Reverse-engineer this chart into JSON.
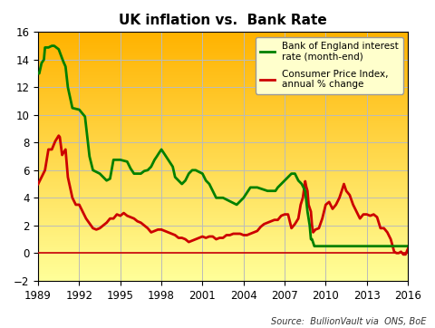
{
  "title": "UK inflation vs.  Bank Rate",
  "source_text": "Source:  BullionVault via  ONS, BoE",
  "ylim": [
    -2,
    16
  ],
  "xlim": [
    1989,
    2016
  ],
  "yticks": [
    -2,
    0,
    2,
    4,
    6,
    8,
    10,
    12,
    14,
    16
  ],
  "xticks": [
    1989,
    1992,
    1995,
    1998,
    2001,
    2004,
    2007,
    2010,
    2013,
    2016
  ],
  "bg_color_top": "#FFB300",
  "bg_color_bottom": "#FFFF99",
  "grid_color": "#BBBBBB",
  "bank_rate_color": "#008000",
  "cpi_color": "#CC0000",
  "zero_line_color": "#CC0000",
  "legend_label_bank": "Bank of England interest\nrate (month-end)",
  "legend_label_cpi": "Consumer Price Index,\nannual % change",
  "bank_rate": [
    [
      1989.0,
      13.0
    ],
    [
      1989.08,
      13.0
    ],
    [
      1989.25,
      13.75
    ],
    [
      1989.42,
      14.0
    ],
    [
      1989.5,
      14.88
    ],
    [
      1989.75,
      14.88
    ],
    [
      1990.0,
      15.0
    ],
    [
      1990.17,
      15.0
    ],
    [
      1990.5,
      14.75
    ],
    [
      1990.83,
      13.88
    ],
    [
      1991.0,
      13.5
    ],
    [
      1991.17,
      12.0
    ],
    [
      1991.5,
      10.5
    ],
    [
      1992.0,
      10.38
    ],
    [
      1992.42,
      9.88
    ],
    [
      1992.75,
      7.0
    ],
    [
      1993.0,
      6.0
    ],
    [
      1993.5,
      5.75
    ],
    [
      1994.0,
      5.25
    ],
    [
      1994.25,
      5.38
    ],
    [
      1994.5,
      6.75
    ],
    [
      1994.75,
      6.75
    ],
    [
      1995.0,
      6.75
    ],
    [
      1995.5,
      6.62
    ],
    [
      1995.75,
      6.12
    ],
    [
      1996.0,
      5.75
    ],
    [
      1996.5,
      5.75
    ],
    [
      1996.75,
      5.94
    ],
    [
      1997.0,
      6.0
    ],
    [
      1997.25,
      6.25
    ],
    [
      1997.5,
      6.75
    ],
    [
      1997.67,
      7.0
    ],
    [
      1997.83,
      7.25
    ],
    [
      1998.0,
      7.5
    ],
    [
      1998.17,
      7.25
    ],
    [
      1998.5,
      6.75
    ],
    [
      1998.83,
      6.25
    ],
    [
      1999.0,
      5.5
    ],
    [
      1999.25,
      5.25
    ],
    [
      1999.5,
      5.0
    ],
    [
      1999.75,
      5.25
    ],
    [
      2000.0,
      5.75
    ],
    [
      2000.25,
      6.0
    ],
    [
      2000.5,
      6.0
    ],
    [
      2001.0,
      5.75
    ],
    [
      2001.25,
      5.25
    ],
    [
      2001.5,
      5.0
    ],
    [
      2001.75,
      4.5
    ],
    [
      2002.0,
      4.0
    ],
    [
      2002.5,
      4.0
    ],
    [
      2003.0,
      3.75
    ],
    [
      2003.5,
      3.5
    ],
    [
      2003.75,
      3.75
    ],
    [
      2004.0,
      4.0
    ],
    [
      2004.5,
      4.75
    ],
    [
      2005.0,
      4.75
    ],
    [
      2005.75,
      4.5
    ],
    [
      2006.0,
      4.5
    ],
    [
      2006.33,
      4.5
    ],
    [
      2006.5,
      4.75
    ],
    [
      2006.75,
      5.0
    ],
    [
      2007.0,
      5.25
    ],
    [
      2007.25,
      5.5
    ],
    [
      2007.5,
      5.75
    ],
    [
      2007.75,
      5.75
    ],
    [
      2008.0,
      5.25
    ],
    [
      2008.25,
      5.0
    ],
    [
      2008.5,
      4.5
    ],
    [
      2008.67,
      3.0
    ],
    [
      2008.83,
      2.0
    ],
    [
      2008.92,
      1.0
    ],
    [
      2009.0,
      1.0
    ],
    [
      2009.17,
      0.5
    ],
    [
      2009.5,
      0.5
    ],
    [
      2010.0,
      0.5
    ],
    [
      2011.0,
      0.5
    ],
    [
      2012.0,
      0.5
    ],
    [
      2013.0,
      0.5
    ],
    [
      2014.0,
      0.5
    ],
    [
      2015.0,
      0.5
    ],
    [
      2015.5,
      0.5
    ],
    [
      2015.83,
      0.5
    ],
    [
      2016.0,
      0.5
    ]
  ],
  "cpi": [
    [
      1989.0,
      5.0
    ],
    [
      1989.25,
      5.5
    ],
    [
      1989.5,
      6.0
    ],
    [
      1989.75,
      7.5
    ],
    [
      1990.0,
      7.5
    ],
    [
      1990.25,
      8.1
    ],
    [
      1990.5,
      8.5
    ],
    [
      1990.58,
      8.4
    ],
    [
      1990.75,
      7.1
    ],
    [
      1991.0,
      7.5
    ],
    [
      1991.17,
      5.5
    ],
    [
      1991.5,
      4.0
    ],
    [
      1991.75,
      3.5
    ],
    [
      1992.0,
      3.5
    ],
    [
      1992.5,
      2.5
    ],
    [
      1993.0,
      1.8
    ],
    [
      1993.25,
      1.7
    ],
    [
      1993.5,
      1.8
    ],
    [
      1993.75,
      2.0
    ],
    [
      1994.0,
      2.2
    ],
    [
      1994.25,
      2.5
    ],
    [
      1994.5,
      2.5
    ],
    [
      1994.75,
      2.8
    ],
    [
      1995.0,
      2.7
    ],
    [
      1995.25,
      2.9
    ],
    [
      1995.5,
      2.7
    ],
    [
      1995.75,
      2.6
    ],
    [
      1996.0,
      2.5
    ],
    [
      1996.25,
      2.3
    ],
    [
      1996.5,
      2.2
    ],
    [
      1996.75,
      2.0
    ],
    [
      1997.0,
      1.8
    ],
    [
      1997.25,
      1.5
    ],
    [
      1997.5,
      1.6
    ],
    [
      1997.75,
      1.7
    ],
    [
      1998.0,
      1.7
    ],
    [
      1998.25,
      1.6
    ],
    [
      1998.5,
      1.5
    ],
    [
      1998.75,
      1.4
    ],
    [
      1999.0,
      1.3
    ],
    [
      1999.25,
      1.1
    ],
    [
      1999.5,
      1.1
    ],
    [
      1999.75,
      1.0
    ],
    [
      2000.0,
      0.8
    ],
    [
      2000.25,
      0.9
    ],
    [
      2000.5,
      1.0
    ],
    [
      2000.75,
      1.1
    ],
    [
      2001.0,
      1.2
    ],
    [
      2001.25,
      1.1
    ],
    [
      2001.5,
      1.2
    ],
    [
      2001.75,
      1.2
    ],
    [
      2002.0,
      1.0
    ],
    [
      2002.25,
      1.1
    ],
    [
      2002.5,
      1.1
    ],
    [
      2002.75,
      1.3
    ],
    [
      2003.0,
      1.3
    ],
    [
      2003.25,
      1.4
    ],
    [
      2003.5,
      1.4
    ],
    [
      2003.75,
      1.4
    ],
    [
      2004.0,
      1.3
    ],
    [
      2004.25,
      1.3
    ],
    [
      2004.5,
      1.4
    ],
    [
      2004.75,
      1.5
    ],
    [
      2005.0,
      1.6
    ],
    [
      2005.25,
      1.9
    ],
    [
      2005.5,
      2.1
    ],
    [
      2005.75,
      2.2
    ],
    [
      2006.0,
      2.3
    ],
    [
      2006.25,
      2.4
    ],
    [
      2006.5,
      2.4
    ],
    [
      2006.75,
      2.7
    ],
    [
      2007.0,
      2.8
    ],
    [
      2007.25,
      2.8
    ],
    [
      2007.5,
      1.8
    ],
    [
      2007.75,
      2.1
    ],
    [
      2008.0,
      2.5
    ],
    [
      2008.17,
      3.5
    ],
    [
      2008.33,
      4.0
    ],
    [
      2008.5,
      5.2
    ],
    [
      2008.58,
      4.8
    ],
    [
      2008.67,
      4.5
    ],
    [
      2008.75,
      3.5
    ],
    [
      2008.92,
      3.0
    ],
    [
      2009.0,
      2.0
    ],
    [
      2009.08,
      1.5
    ],
    [
      2009.25,
      1.7
    ],
    [
      2009.5,
      1.8
    ],
    [
      2009.75,
      2.5
    ],
    [
      2010.0,
      3.5
    ],
    [
      2010.25,
      3.7
    ],
    [
      2010.5,
      3.2
    ],
    [
      2010.75,
      3.5
    ],
    [
      2011.0,
      4.0
    ],
    [
      2011.17,
      4.5
    ],
    [
      2011.33,
      5.0
    ],
    [
      2011.5,
      4.5
    ],
    [
      2011.75,
      4.2
    ],
    [
      2012.0,
      3.5
    ],
    [
      2012.25,
      3.0
    ],
    [
      2012.5,
      2.5
    ],
    [
      2012.75,
      2.8
    ],
    [
      2013.0,
      2.8
    ],
    [
      2013.25,
      2.7
    ],
    [
      2013.5,
      2.8
    ],
    [
      2013.75,
      2.6
    ],
    [
      2014.0,
      1.8
    ],
    [
      2014.25,
      1.8
    ],
    [
      2014.5,
      1.5
    ],
    [
      2014.75,
      1.0
    ],
    [
      2015.0,
      0.1
    ],
    [
      2015.17,
      0.0
    ],
    [
      2015.33,
      0.0
    ],
    [
      2015.5,
      0.1
    ],
    [
      2015.67,
      -0.1
    ],
    [
      2015.83,
      -0.1
    ],
    [
      2016.0,
      0.3
    ]
  ]
}
